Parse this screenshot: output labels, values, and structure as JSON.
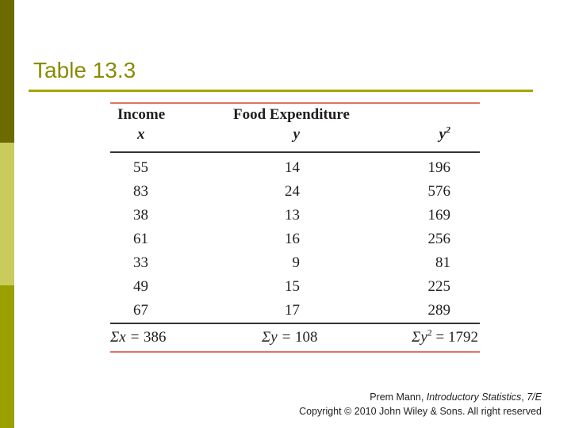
{
  "title": "Table 13.3",
  "table": {
    "headers": {
      "income": "Income",
      "food": "Food Expenditure",
      "x": "x",
      "y": "y",
      "y2_base": "y",
      "y2_exp": "2"
    },
    "rows": [
      {
        "x": "55",
        "y": "14",
        "y2": "196"
      },
      {
        "x": "83",
        "y": "24",
        "y2": "576"
      },
      {
        "x": "38",
        "y": "13",
        "y2": "169"
      },
      {
        "x": "61",
        "y": "16",
        "y2": "256"
      },
      {
        "x": "33",
        "y": "9",
        "y2": "81"
      },
      {
        "x": "49",
        "y": "15",
        "y2": "225"
      },
      {
        "x": "67",
        "y": "17",
        "y2": "289"
      }
    ],
    "sums": {
      "x_label": "Σx = ",
      "x_value": "386",
      "y_label": "Σy = ",
      "y_value": "108",
      "y2_label": "Σy",
      "y2_exp": "2",
      "y2_value": " = 1792"
    }
  },
  "credit": {
    "line1_prefix": "Prem Mann, ",
    "line1_italic": "Introductory Statistics",
    "line1_sep": ", ",
    "line1_edition": "7/E",
    "line2": "Copyright © 2010 John Wiley & Sons. All right reserved"
  },
  "colors": {
    "sidebar_dark": "#6b6b00",
    "sidebar_light": "#c9cc5c",
    "sidebar_mid": "#9aa000",
    "title": "#8a8a00",
    "title_rule": "#a7a300",
    "table_rule_red": "#e07367"
  }
}
